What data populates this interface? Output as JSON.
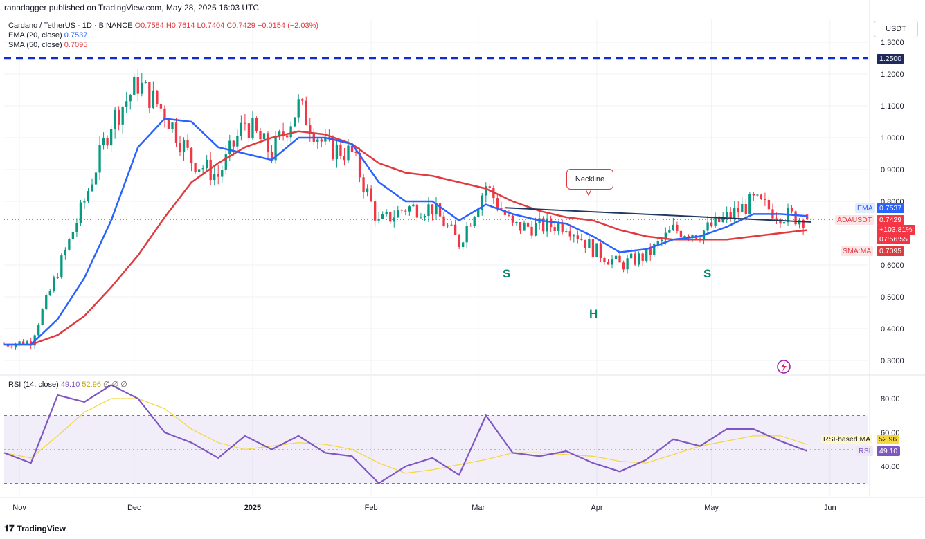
{
  "header": {
    "published": "ranadagger published on TradingView.com, May 28, 2025 16:03 UTC"
  },
  "legend": {
    "symbol": "Cardano / TetherUS · 1D · BINANCE",
    "ohlc": "O0.7584 H0.7614 L0.7404 C0.7429 −0.0154 (−2.03%)",
    "ema_label": "EMA (20, close)",
    "ema_value": "0.7537",
    "sma_label": "SMA (50, close)",
    "sma_value": "0.7095",
    "rsi_label": "RSI (14, close)",
    "rsi_value": "49.10",
    "rsi_ma_value": "52.96",
    "rsi_extra": "∅ ∅ ∅"
  },
  "currency": "USDT",
  "annotations": {
    "neckline": "Neckline",
    "left_shoulder": "S",
    "head": "H",
    "right_shoulder": "S"
  },
  "price_scale": {
    "badges": {
      "resistance": "1.2500",
      "ema_name": "EMA",
      "ema_val": "0.7537",
      "symbol_name": "ADAUSDT",
      "symbol_val": "0.7429",
      "change": "+103.81%",
      "countdown": "07:56:55",
      "sma_name": "SMA:MA",
      "sma_val": "0.7095"
    }
  },
  "rsi_scale": {
    "badges": {
      "ma_name": "RSI-based MA",
      "ma_val": "52.96",
      "rsi_name": "RSI",
      "rsi_val": "49.10"
    }
  },
  "footer": {
    "brand": "TradingView"
  },
  "colors": {
    "up": "#089981",
    "down": "#f23645",
    "ema": "#2962ff",
    "sma": "#e03a3e",
    "neckline": "#1e3a5f",
    "rsi": "#7e57c2",
    "rsi_ma": "#f5d742"
  },
  "chart_data": [
    {
      "type": "candlestick",
      "title": "Cardano / TetherUS · 1D · BINANCE",
      "ylim": [
        0.25,
        1.35
      ],
      "y_ticks": [
        "1.3000",
        "1.2000",
        "1.1000",
        "1.0000",
        "0.9000",
        "0.8000",
        "0.6000",
        "0.5000",
        "0.4000",
        "0.3000"
      ],
      "x_ticks": [
        "Nov",
        "Dec",
        "2025",
        "Feb",
        "Mar",
        "Apr",
        "May",
        "Jun"
      ],
      "x_range": [
        "2024-10-28",
        "2025-06-11"
      ],
      "resistance": 1.25,
      "neckline": {
        "start": [
          "2025-03-08",
          0.78
        ],
        "end": [
          "2025-05-27",
          0.735
        ]
      },
      "candles_weekly_close": [
        [
          "2024-10-28",
          0.35
        ],
        [
          "2024-11-04",
          0.36
        ],
        [
          "2024-11-11",
          0.58
        ],
        [
          "2024-11-18",
          0.8
        ],
        [
          "2024-11-25",
          1.05
        ],
        [
          "2024-12-02",
          1.17
        ],
        [
          "2024-12-09",
          1.08
        ],
        [
          "2024-12-16",
          0.93
        ],
        [
          "2024-12-23",
          0.88
        ],
        [
          "2024-12-30",
          1.05
        ],
        [
          "2025-01-06",
          0.95
        ],
        [
          "2025-01-13",
          1.1
        ],
        [
          "2025-01-20",
          0.97
        ],
        [
          "2025-01-27",
          0.95
        ],
        [
          "2025-02-03",
          0.73
        ],
        [
          "2025-02-10",
          0.78
        ],
        [
          "2025-02-17",
          0.78
        ],
        [
          "2025-02-24",
          0.67
        ],
        [
          "2025-03-03",
          0.85
        ],
        [
          "2025-03-10",
          0.72
        ],
        [
          "2025-03-17",
          0.72
        ],
        [
          "2025-03-24",
          0.73
        ],
        [
          "2025-03-31",
          0.65
        ],
        [
          "2025-04-07",
          0.6
        ],
        [
          "2025-04-14",
          0.63
        ],
        [
          "2025-04-21",
          0.71
        ],
        [
          "2025-04-28",
          0.7
        ],
        [
          "2025-05-05",
          0.75
        ],
        [
          "2025-05-12",
          0.8
        ],
        [
          "2025-05-19",
          0.76
        ],
        [
          "2025-05-26",
          0.7429
        ]
      ],
      "series": [
        {
          "name": "EMA (20, close)",
          "values": [
            [
              "2024-10-28",
              0.35
            ],
            [
              "2024-11-04",
              0.35
            ],
            [
              "2024-11-11",
              0.43
            ],
            [
              "2024-11-18",
              0.56
            ],
            [
              "2024-11-25",
              0.74
            ],
            [
              "2024-12-02",
              0.97
            ],
            [
              "2024-12-09",
              1.06
            ],
            [
              "2024-12-16",
              1.05
            ],
            [
              "2024-12-23",
              0.97
            ],
            [
              "2024-12-30",
              0.95
            ],
            [
              "2025-01-06",
              0.93
            ],
            [
              "2025-01-13",
              1.0
            ],
            [
              "2025-01-20",
              1.0
            ],
            [
              "2025-01-27",
              0.98
            ],
            [
              "2025-02-03",
              0.86
            ],
            [
              "2025-02-10",
              0.8
            ],
            [
              "2025-02-17",
              0.8
            ],
            [
              "2025-02-24",
              0.74
            ],
            [
              "2025-03-03",
              0.79
            ],
            [
              "2025-03-10",
              0.76
            ],
            [
              "2025-03-17",
              0.74
            ],
            [
              "2025-03-24",
              0.73
            ],
            [
              "2025-03-31",
              0.69
            ],
            [
              "2025-04-07",
              0.64
            ],
            [
              "2025-04-14",
              0.65
            ],
            [
              "2025-04-21",
              0.68
            ],
            [
              "2025-04-28",
              0.69
            ],
            [
              "2025-05-05",
              0.72
            ],
            [
              "2025-05-12",
              0.76
            ],
            [
              "2025-05-19",
              0.76
            ],
            [
              "2025-05-26",
              0.7537
            ]
          ]
        },
        {
          "name": "SMA (50, close)",
          "values": [
            [
              "2024-10-28",
              0.35
            ],
            [
              "2024-11-04",
              0.35
            ],
            [
              "2024-11-11",
              0.38
            ],
            [
              "2024-11-18",
              0.44
            ],
            [
              "2024-11-25",
              0.53
            ],
            [
              "2024-12-02",
              0.63
            ],
            [
              "2024-12-09",
              0.75
            ],
            [
              "2024-12-16",
              0.86
            ],
            [
              "2024-12-23",
              0.92
            ],
            [
              "2024-12-30",
              0.97
            ],
            [
              "2025-01-06",
              1.0
            ],
            [
              "2025-01-13",
              1.02
            ],
            [
              "2025-01-20",
              1.01
            ],
            [
              "2025-01-27",
              0.98
            ],
            [
              "2025-02-03",
              0.92
            ],
            [
              "2025-02-10",
              0.89
            ],
            [
              "2025-02-17",
              0.88
            ],
            [
              "2025-02-24",
              0.86
            ],
            [
              "2025-03-03",
              0.84
            ],
            [
              "2025-03-10",
              0.8
            ],
            [
              "2025-03-17",
              0.77
            ],
            [
              "2025-03-24",
              0.75
            ],
            [
              "2025-03-31",
              0.74
            ],
            [
              "2025-04-07",
              0.71
            ],
            [
              "2025-04-14",
              0.69
            ],
            [
              "2025-04-21",
              0.68
            ],
            [
              "2025-04-28",
              0.68
            ],
            [
              "2025-05-05",
              0.68
            ],
            [
              "2025-05-12",
              0.69
            ],
            [
              "2025-05-19",
              0.7
            ],
            [
              "2025-05-26",
              0.7095
            ]
          ]
        }
      ]
    },
    {
      "type": "line",
      "title": "RSI (14, close)",
      "ylim": [
        22,
        92
      ],
      "y_ticks": [
        "80.00",
        "60.00",
        "40.00"
      ],
      "bands": [
        30,
        70
      ],
      "series": [
        {
          "name": "RSI",
          "values": [
            [
              "2024-10-28",
              48
            ],
            [
              "2024-11-04",
              42
            ],
            [
              "2024-11-11",
              82
            ],
            [
              "2024-11-18",
              78
            ],
            [
              "2024-11-25",
              88
            ],
            [
              "2024-12-02",
              80
            ],
            [
              "2024-12-09",
              60
            ],
            [
              "2024-12-16",
              54
            ],
            [
              "2024-12-23",
              45
            ],
            [
              "2024-12-30",
              58
            ],
            [
              "2025-01-06",
              50
            ],
            [
              "2025-01-13",
              58
            ],
            [
              "2025-01-20",
              48
            ],
            [
              "2025-01-27",
              46
            ],
            [
              "2025-02-03",
              30
            ],
            [
              "2025-02-10",
              40
            ],
            [
              "2025-02-17",
              45
            ],
            [
              "2025-02-24",
              35
            ],
            [
              "2025-03-03",
              70
            ],
            [
              "2025-03-10",
              48
            ],
            [
              "2025-03-17",
              46
            ],
            [
              "2025-03-24",
              49
            ],
            [
              "2025-03-31",
              42
            ],
            [
              "2025-04-07",
              37
            ],
            [
              "2025-04-14",
              44
            ],
            [
              "2025-04-21",
              56
            ],
            [
              "2025-04-28",
              52
            ],
            [
              "2025-05-05",
              62
            ],
            [
              "2025-05-12",
              62
            ],
            [
              "2025-05-19",
              55
            ],
            [
              "2025-05-26",
              49.1
            ]
          ]
        },
        {
          "name": "RSI-based MA",
          "values": [
            [
              "2024-10-28",
              48
            ],
            [
              "2024-11-04",
              45
            ],
            [
              "2024-11-11",
              58
            ],
            [
              "2024-11-18",
              72
            ],
            [
              "2024-11-25",
              80
            ],
            [
              "2024-12-02",
              80
            ],
            [
              "2024-12-09",
              74
            ],
            [
              "2024-12-16",
              62
            ],
            [
              "2024-12-23",
              54
            ],
            [
              "2024-12-30",
              50
            ],
            [
              "2025-01-06",
              52
            ],
            [
              "2025-01-13",
              54
            ],
            [
              "2025-01-20",
              53
            ],
            [
              "2025-01-27",
              50
            ],
            [
              "2025-02-03",
              42
            ],
            [
              "2025-02-10",
              36
            ],
            [
              "2025-02-17",
              38
            ],
            [
              "2025-02-24",
              41
            ],
            [
              "2025-03-03",
              44
            ],
            [
              "2025-03-10",
              48
            ],
            [
              "2025-03-17",
              48
            ],
            [
              "2025-03-24",
              47
            ],
            [
              "2025-03-31",
              46
            ],
            [
              "2025-04-07",
              43
            ],
            [
              "2025-04-14",
              42
            ],
            [
              "2025-04-21",
              47
            ],
            [
              "2025-04-28",
              52
            ],
            [
              "2025-05-05",
              55
            ],
            [
              "2025-05-12",
              58
            ],
            [
              "2025-05-19",
              58
            ],
            [
              "2025-05-26",
              52.96
            ]
          ]
        }
      ]
    }
  ]
}
